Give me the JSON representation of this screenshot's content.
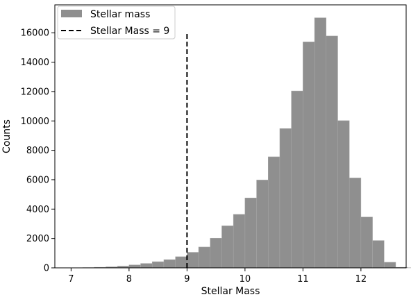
{
  "chart_data": {
    "type": "bar",
    "title": "",
    "xlabel": "Stellar Mass",
    "ylabel": "Counts",
    "xlim": [
      6.72,
      12.78
    ],
    "ylim": [
      0,
      17900
    ],
    "xticks": [
      7,
      8,
      9,
      10,
      11,
      12
    ],
    "yticks": [
      0,
      2000,
      4000,
      6000,
      8000,
      10000,
      12000,
      14000,
      16000
    ],
    "grid": false,
    "legend_position": "top-left",
    "bar_color": "#8f8f8f",
    "bin_width": 0.2,
    "bin_edges_start": 7.0,
    "series": [
      {
        "name": "Stellar mass",
        "values": [
          10,
          20,
          40,
          70,
          120,
          200,
          300,
          420,
          560,
          760,
          1060,
          1420,
          2020,
          2860,
          3640,
          4760,
          5980,
          7560,
          9480,
          12040,
          15380,
          17020,
          15780,
          10020,
          6120,
          3460,
          1860,
          380,
          40,
          10,
          5,
          2
        ]
      }
    ],
    "reference_line": {
      "name": "Stellar Mass = 9",
      "x": 9,
      "y_top": 16000,
      "color": "#000000",
      "style": "dashed"
    }
  }
}
